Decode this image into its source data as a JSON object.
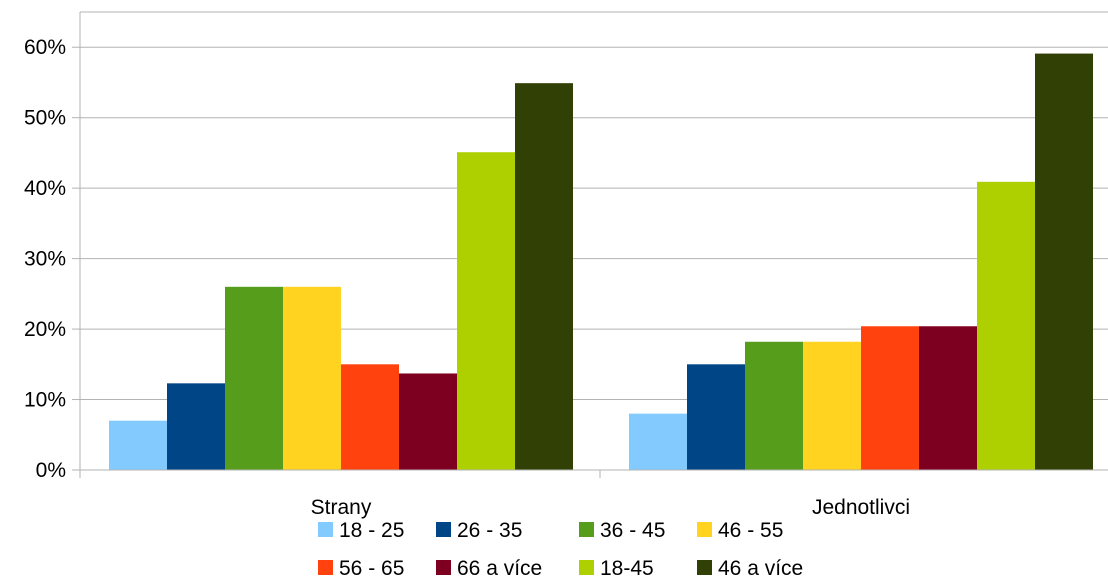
{
  "chart_data": {
    "type": "bar",
    "categories": [
      "Strany",
      "Jednotlivci"
    ],
    "series": [
      {
        "name": "18 - 25",
        "color": "#83caff",
        "values": [
          7,
          8
        ]
      },
      {
        "name": "26 - 35",
        "color": "#004586",
        "values": [
          12.3,
          15
        ]
      },
      {
        "name": "36 - 45",
        "color": "#579d1c",
        "values": [
          26,
          18.2
        ]
      },
      {
        "name": "46 - 55",
        "color": "#ffd320",
        "values": [
          26,
          18.2
        ]
      },
      {
        "name": "56 - 65",
        "color": "#ff420e",
        "values": [
          15,
          20.4
        ]
      },
      {
        "name": "66 a více",
        "color": "#7e0021",
        "values": [
          13.7,
          20.4
        ]
      },
      {
        "name": "18-45",
        "color": "#aecf00",
        "values": [
          45.1,
          40.9
        ]
      },
      {
        "name": "46 a více",
        "color": "#314004",
        "values": [
          54.9,
          59.1
        ]
      }
    ],
    "yticks": [
      "0%",
      "10%",
      "20%",
      "30%",
      "40%",
      "50%",
      "60%"
    ],
    "ylim": [
      0,
      65
    ],
    "grid": true,
    "legend_position": "bottom"
  }
}
